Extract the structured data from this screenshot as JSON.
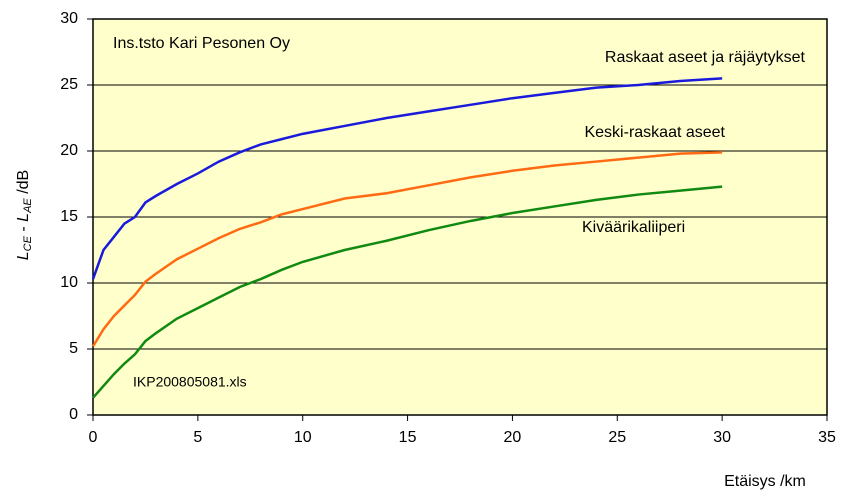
{
  "chart_data": {
    "type": "line",
    "annotations": [
      "Ins.tsto Kari Pesonen Oy",
      "IKP200805081.xls"
    ],
    "ylabel": [
      "L",
      "CE",
      " - ",
      "L",
      "AE",
      " /dB"
    ],
    "xlabel": "Etäisys /km",
    "x": [
      0,
      0.5,
      1,
      1.5,
      2,
      2.5,
      3,
      4,
      5,
      6,
      7,
      8,
      9,
      10,
      12,
      14,
      16,
      18,
      20,
      22,
      24,
      26,
      28,
      30
    ],
    "series": [
      {
        "name": "Raskaat aseet ja räjäytykset",
        "color": "#1a1adc",
        "values": [
          10.3,
          12.5,
          13.5,
          14.5,
          15,
          16.1,
          16.6,
          17.5,
          18.3,
          19.2,
          19.9,
          20.5,
          20.9,
          21.3,
          21.9,
          22.5,
          23,
          23.5,
          24,
          24.4,
          24.8,
          25,
          25.3,
          25.5
        ]
      },
      {
        "name": "Keski-raskaat aseet",
        "color": "#ff6a13",
        "values": [
          5.2,
          6.5,
          7.5,
          8.3,
          9.1,
          10.1,
          10.7,
          11.8,
          12.6,
          13.4,
          14.1,
          14.6,
          15.2,
          15.6,
          16.4,
          16.8,
          17.4,
          18,
          18.5,
          18.9,
          19.2,
          19.5,
          19.8,
          19.9
        ]
      },
      {
        "name": "Kiväärikaliiperi",
        "color": "#118a11",
        "values": [
          1.3,
          2.2,
          3.1,
          3.9,
          4.6,
          5.6,
          6.2,
          7.3,
          8.1,
          8.9,
          9.7,
          10.3,
          11,
          11.6,
          12.5,
          13.2,
          14,
          14.7,
          15.3,
          15.8,
          16.3,
          16.7,
          17,
          17.3
        ]
      }
    ],
    "xlim": [
      0,
      35
    ],
    "xticks": [
      0,
      5,
      10,
      15,
      20,
      25,
      30,
      35
    ],
    "ylim": [
      0,
      30
    ],
    "yticks": [
      0,
      5,
      10,
      15,
      20,
      25,
      30
    ],
    "grid": true,
    "background": "#ffffcc"
  }
}
